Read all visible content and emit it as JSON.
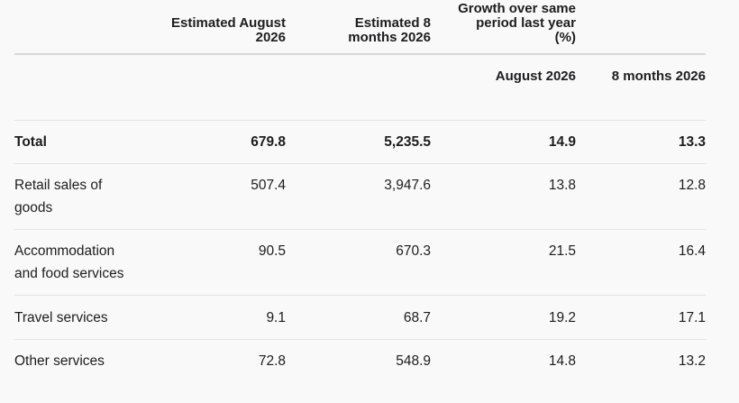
{
  "header": {
    "col1": "Estimated August 2026",
    "col2": "Estimated 8 months 2026",
    "group": "Growth over same period last year (%)",
    "sub_col3": "August 2026",
    "sub_col4": "8 months 2026"
  },
  "rows": [
    {
      "label": "Total",
      "c1": "679.8",
      "c2": "5,235.5",
      "c3": "14.9",
      "c4": "13.3"
    },
    {
      "label": "Retail sales of goods",
      "c1": "507.4",
      "c2": "3,947.6",
      "c3": "13.8",
      "c4": "12.8"
    },
    {
      "label": "Accommodation and food services",
      "c1": "90.5",
      "c2": "670.3",
      "c3": "21.5",
      "c4": "16.4"
    },
    {
      "label": "Travel services",
      "c1": "9.1",
      "c2": "68.7",
      "c3": "19.2",
      "c4": "17.1"
    },
    {
      "label": "Other services",
      "c1": "72.8",
      "c2": "548.9",
      "c3": "14.8",
      "c4": "13.2"
    }
  ]
}
